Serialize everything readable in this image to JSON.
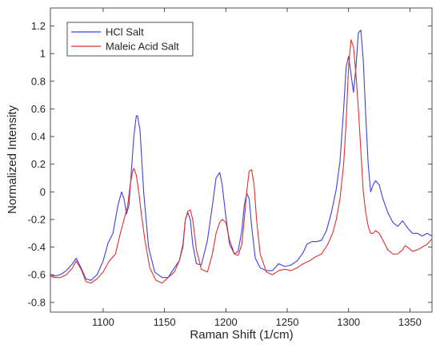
{
  "chart_data": {
    "type": "line",
    "title": "",
    "xlabel": "Raman Shift (1/cm)",
    "ylabel": "Normalized Intensity",
    "xlim": [
      1057,
      1368
    ],
    "ylim": [
      -0.87,
      1.33
    ],
    "xticks": [
      1100,
      1150,
      1200,
      1250,
      1300,
      1350
    ],
    "yticks": [
      -0.8,
      -0.6,
      -0.4,
      -0.2,
      0,
      0.2,
      0.4,
      0.6,
      0.8,
      1,
      1.2
    ],
    "ytick_labels": [
      "-0.8",
      "-0.6",
      "-0.4",
      "-0.2",
      "0",
      "0.2",
      "0.4",
      "0.6",
      "0.8",
      "1",
      "1.2"
    ],
    "grid": false,
    "legend_position": "top-left",
    "series": [
      {
        "name": "HCl Salt",
        "color": "#4040e0",
        "x": [
          1057,
          1060,
          1065,
          1070,
          1075,
          1078,
          1082,
          1086,
          1090,
          1095,
          1100,
          1104,
          1108,
          1112,
          1115,
          1117,
          1119,
          1121,
          1123,
          1125,
          1127,
          1128,
          1130,
          1133,
          1137,
          1142,
          1148,
          1153,
          1158,
          1162,
          1165,
          1167,
          1169,
          1171,
          1173,
          1176,
          1180,
          1185,
          1189,
          1192,
          1195,
          1197,
          1200,
          1203,
          1207,
          1210,
          1213,
          1215,
          1217,
          1219,
          1221,
          1224,
          1228,
          1233,
          1238,
          1243,
          1248,
          1253,
          1258,
          1263,
          1266,
          1270,
          1274,
          1278,
          1282,
          1286,
          1290,
          1293,
          1296,
          1298,
          1300,
          1302,
          1304,
          1306,
          1308,
          1310,
          1312,
          1314,
          1316,
          1318,
          1320,
          1322,
          1325,
          1328,
          1332,
          1336,
          1340,
          1344,
          1348,
          1352,
          1356,
          1360,
          1364,
          1368
        ],
        "y": [
          -0.6,
          -0.61,
          -0.6,
          -0.57,
          -0.52,
          -0.48,
          -0.55,
          -0.63,
          -0.64,
          -0.6,
          -0.5,
          -0.37,
          -0.3,
          -0.1,
          0.0,
          -0.05,
          -0.16,
          -0.1,
          0.15,
          0.4,
          0.55,
          0.55,
          0.45,
          0.0,
          -0.4,
          -0.58,
          -0.62,
          -0.62,
          -0.55,
          -0.5,
          -0.4,
          -0.2,
          -0.15,
          -0.2,
          -0.38,
          -0.52,
          -0.53,
          -0.35,
          -0.1,
          0.1,
          0.14,
          0.05,
          -0.18,
          -0.38,
          -0.45,
          -0.43,
          -0.28,
          -0.1,
          -0.01,
          -0.05,
          -0.25,
          -0.48,
          -0.55,
          -0.57,
          -0.57,
          -0.52,
          -0.54,
          -0.53,
          -0.5,
          -0.44,
          -0.38,
          -0.36,
          -0.36,
          -0.35,
          -0.28,
          -0.15,
          0.02,
          0.22,
          0.6,
          0.9,
          0.98,
          0.85,
          0.72,
          0.9,
          1.15,
          1.17,
          0.95,
          0.55,
          0.2,
          0.0,
          0.05,
          0.08,
          0.05,
          -0.05,
          -0.15,
          -0.22,
          -0.25,
          -0.21,
          -0.26,
          -0.3,
          -0.3,
          -0.32,
          -0.3,
          -0.32
        ]
      },
      {
        "name": "Maleic Acid Salt",
        "color": "#e03030",
        "x": [
          1057,
          1060,
          1065,
          1070,
          1075,
          1078,
          1082,
          1086,
          1090,
          1095,
          1100,
          1105,
          1110,
          1114,
          1117,
          1120,
          1122,
          1124,
          1125,
          1127,
          1129,
          1131,
          1134,
          1138,
          1143,
          1148,
          1153,
          1158,
          1162,
          1165,
          1167,
          1169,
          1171,
          1173,
          1176,
          1180,
          1185,
          1189,
          1192,
          1195,
          1197,
          1200,
          1203,
          1207,
          1210,
          1213,
          1215,
          1217,
          1219,
          1221,
          1223,
          1225,
          1228,
          1233,
          1238,
          1243,
          1248,
          1253,
          1258,
          1263,
          1268,
          1273,
          1278,
          1283,
          1287,
          1290,
          1293,
          1296,
          1298,
          1300,
          1302,
          1304,
          1306,
          1308,
          1310,
          1312,
          1314,
          1316,
          1318,
          1320,
          1322,
          1325,
          1328,
          1332,
          1336,
          1340,
          1344,
          1346,
          1348,
          1352,
          1356,
          1360,
          1364,
          1368
        ],
        "y": [
          -0.61,
          -0.62,
          -0.62,
          -0.6,
          -0.55,
          -0.5,
          -0.56,
          -0.65,
          -0.66,
          -0.63,
          -0.58,
          -0.5,
          -0.45,
          -0.3,
          -0.2,
          -0.1,
          0.05,
          0.15,
          0.17,
          0.12,
          0.0,
          -0.15,
          -0.35,
          -0.55,
          -0.64,
          -0.66,
          -0.62,
          -0.58,
          -0.5,
          -0.38,
          -0.2,
          -0.14,
          -0.13,
          -0.2,
          -0.42,
          -0.56,
          -0.58,
          -0.45,
          -0.3,
          -0.22,
          -0.2,
          -0.22,
          -0.35,
          -0.45,
          -0.46,
          -0.38,
          -0.2,
          0.0,
          0.15,
          0.16,
          0.05,
          -0.2,
          -0.45,
          -0.58,
          -0.6,
          -0.57,
          -0.56,
          -0.57,
          -0.55,
          -0.52,
          -0.5,
          -0.47,
          -0.45,
          -0.38,
          -0.3,
          -0.2,
          -0.05,
          0.2,
          0.5,
          0.9,
          1.1,
          1.05,
          0.85,
          0.6,
          0.3,
          0.0,
          -0.15,
          -0.25,
          -0.3,
          -0.3,
          -0.28,
          -0.3,
          -0.35,
          -0.42,
          -0.45,
          -0.45,
          -0.42,
          -0.39,
          -0.4,
          -0.43,
          -0.42,
          -0.4,
          -0.38,
          -0.34
        ]
      }
    ]
  }
}
